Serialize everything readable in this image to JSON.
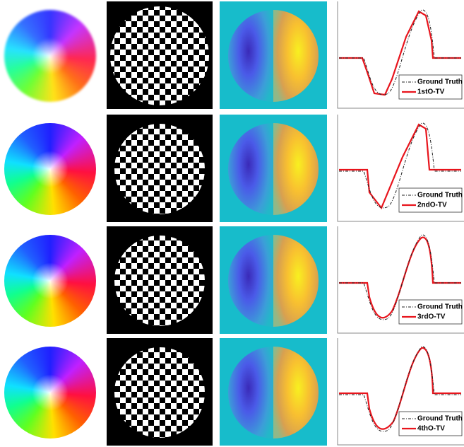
{
  "rows": [
    {
      "legend": [
        "Ground Truth",
        "1stO-TV"
      ]
    },
    {
      "legend": [
        "Ground Truth",
        "2ndO-TV"
      ]
    },
    {
      "legend": [
        "Ground Truth",
        "3rdO-TV"
      ]
    },
    {
      "legend": [
        "Ground Truth",
        "4thO-TV"
      ]
    }
  ]
}
